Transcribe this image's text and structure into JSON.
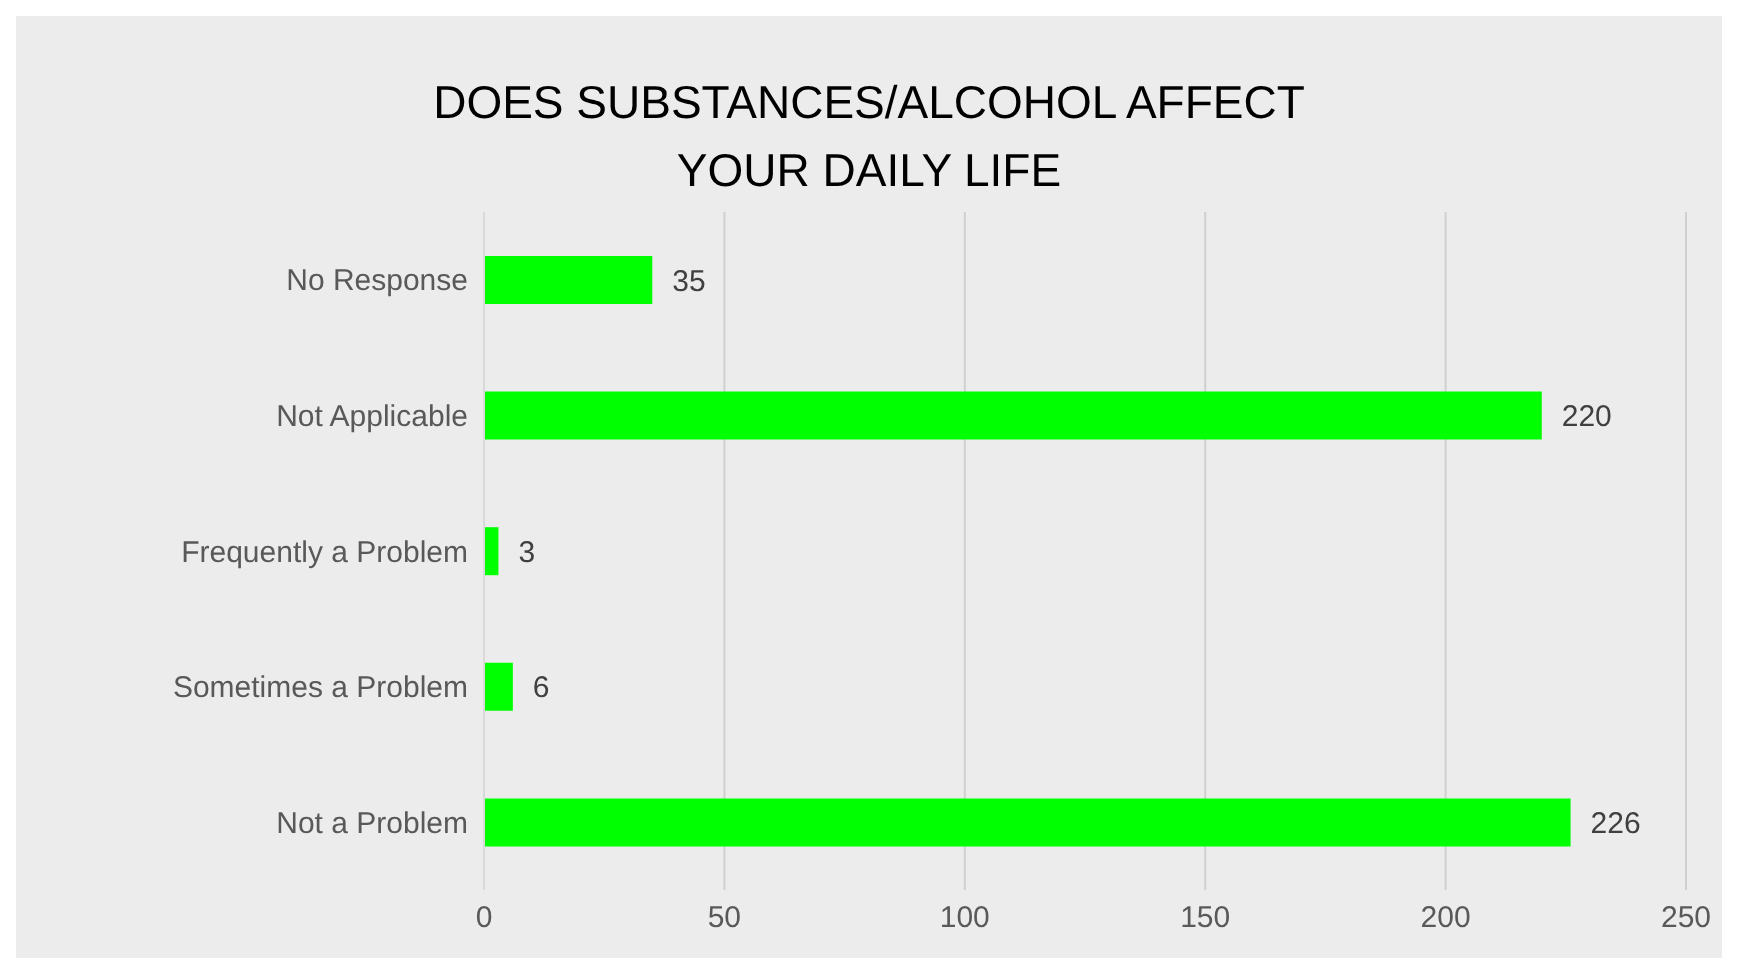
{
  "chart_data": {
    "type": "bar",
    "orientation": "horizontal",
    "title": "DOES SUBSTANCES/ALCOHOL AFFECT YOUR DAILY LIFE",
    "categories": [
      "No Response",
      "Not Applicable",
      "Frequently a Problem",
      "Sometimes a Problem",
      "Not a Problem"
    ],
    "values": [
      35,
      220,
      3,
      6,
      226
    ],
    "color": "#00ff00",
    "xlim": [
      0,
      250
    ],
    "xticks": [
      0,
      50,
      100,
      150,
      200,
      250
    ],
    "grid": "x",
    "data_labels": true
  }
}
